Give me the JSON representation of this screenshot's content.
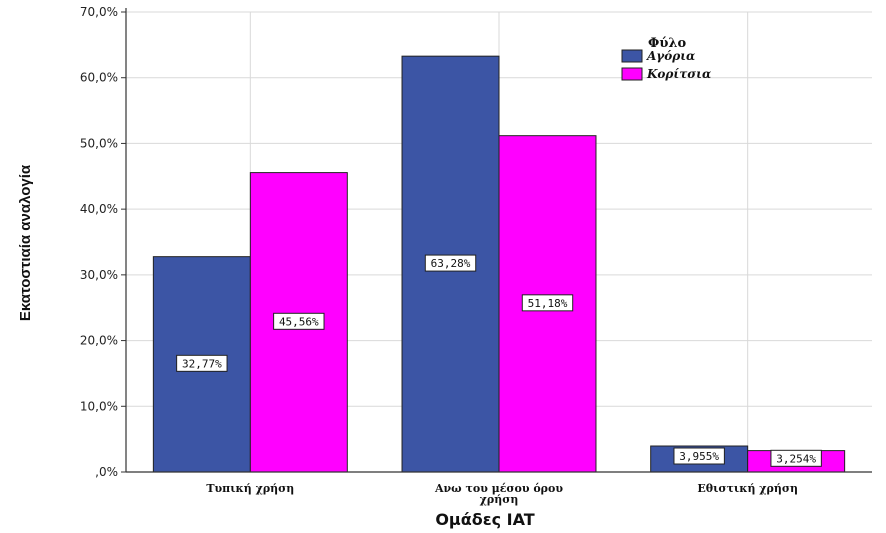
{
  "chart_data": {
    "type": "bar",
    "xlabel": "Ομάδες IAT",
    "ylabel": "Εκατοστιαία αναλογία",
    "categories": [
      [
        "Τυπική χρήση"
      ],
      [
        "Ανω του μέσου όρου",
        "χρήση"
      ],
      [
        "Εθιστική χρήση"
      ]
    ],
    "series": [
      {
        "name": "Αγόρια",
        "color": "#3c55a5",
        "values": [
          32.77,
          63.28,
          3.955
        ],
        "labels": [
          "32,77%",
          "63,28%",
          "3,955%"
        ]
      },
      {
        "name": "Κορίτσια",
        "color": "#ff00ff",
        "values": [
          45.56,
          51.18,
          3.254
        ],
        "labels": [
          "45,56%",
          "51,18%",
          "3,254%"
        ]
      }
    ],
    "ylim": [
      0,
      70
    ],
    "yticks": [
      0,
      10,
      20,
      30,
      40,
      50,
      60,
      70
    ],
    "ytick_labels": [
      ",0%",
      "10,0%",
      "20,0%",
      "30,0%",
      "40,0%",
      "50,0%",
      "60,0%",
      "70,0%"
    ],
    "legend": {
      "title": "Φύλο",
      "position": "top-right"
    },
    "grid": true
  }
}
